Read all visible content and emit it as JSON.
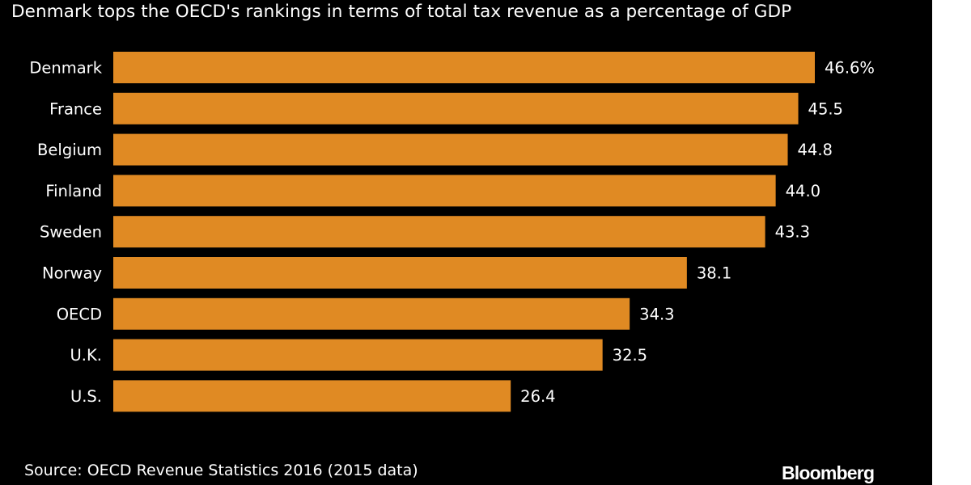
{
  "colors": {
    "background": "#000000",
    "bar": "#e08a23",
    "text": "#ffffff"
  },
  "chart_data": {
    "type": "bar",
    "orientation": "horizontal",
    "title": "Denmark tops the OECD's rankings in terms of total tax revenue as a percentage of GDP",
    "categories": [
      "Denmark",
      "France",
      "Belgium",
      "Finland",
      "Sweden",
      "Norway",
      "OECD",
      "U.K.",
      "U.S."
    ],
    "values": [
      46.6,
      45.5,
      44.8,
      44.0,
      43.3,
      38.1,
      34.3,
      32.5,
      26.4
    ],
    "data_labels": [
      "46.6%",
      "45.5",
      "44.8",
      "44.0",
      "43.3",
      "38.1",
      "34.3",
      "32.5",
      "26.4"
    ],
    "xlim": [
      0,
      46.6
    ],
    "grid": false,
    "legend": "none"
  },
  "footer": {
    "source": "Source: OECD Revenue Statistics 2016 (2015 data)",
    "brand": "Bloomberg"
  }
}
